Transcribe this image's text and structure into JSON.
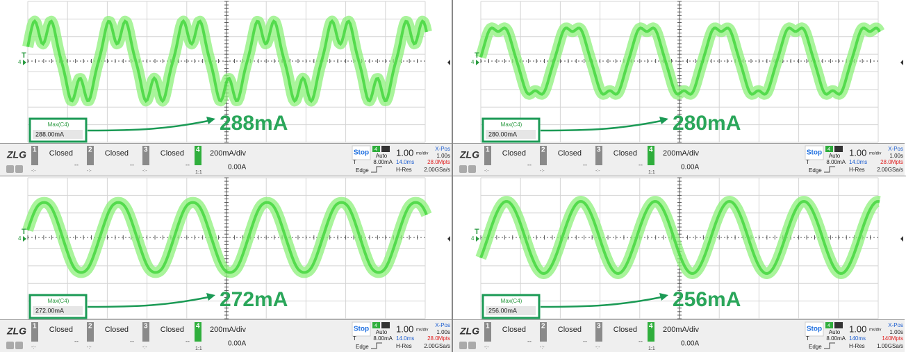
{
  "panels": [
    {
      "trigger_label": "T",
      "trigger_channel": "4",
      "max_label": "Max(C4)",
      "max_value": "288.00mA",
      "annotation": "288mA",
      "logo": "ZLG",
      "channels": [
        {
          "number": "1",
          "state": "Closed",
          "value": "--",
          "offset": "-:-"
        },
        {
          "number": "2",
          "state": "Closed",
          "value": "--",
          "offset": "-:-"
        },
        {
          "number": "3",
          "state": "Closed",
          "value": "--",
          "offset": "-:-"
        }
      ],
      "ch4": {
        "number": "4",
        "scale": "200mA/div",
        "offset": "0.00A",
        "probe": "1:1"
      },
      "run_state": "Stop",
      "trig_channel": "4",
      "trig_mode": "Auto",
      "timebase": "1.00",
      "timebase_unit": "ms/div",
      "xpos_label": "X-Pos",
      "xpos": "1.00s",
      "trig_type_label": "T",
      "trig_level": "8.00mA",
      "trig_kind": "Edge",
      "record_time": "14.0ms",
      "record_points": "28.0Mpts",
      "acq_mode": "H-Res",
      "sample_rate": "2.00GSa/s"
    },
    {
      "trigger_label": "T",
      "trigger_channel": "4",
      "max_label": "Max(C4)",
      "max_value": "280.00mA",
      "annotation": "280mA",
      "logo": "ZLG",
      "channels": [
        {
          "number": "1",
          "state": "Closed",
          "value": "--",
          "offset": "-:-"
        },
        {
          "number": "2",
          "state": "Closed",
          "value": "--",
          "offset": "-:-"
        },
        {
          "number": "3",
          "state": "Closed",
          "value": "--",
          "offset": "-:-"
        }
      ],
      "ch4": {
        "number": "4",
        "scale": "200mA/div",
        "offset": "0.00A",
        "probe": "1:1"
      },
      "run_state": "Stop",
      "trig_channel": "4",
      "trig_mode": "Auto",
      "timebase": "1.00",
      "timebase_unit": "ms/div",
      "xpos_label": "X-Pos",
      "xpos": "1.00s",
      "trig_type_label": "T",
      "trig_level": "8.00mA",
      "trig_kind": "Edge",
      "record_time": "14.0ms",
      "record_points": "28.0Mpts",
      "acq_mode": "H-Res",
      "sample_rate": "2.00GSa/s"
    },
    {
      "trigger_label": "T",
      "trigger_channel": "4",
      "max_label": "Max(C4)",
      "max_value": "272.00mA",
      "annotation": "272mA",
      "logo": "ZLG",
      "channels": [
        {
          "number": "1",
          "state": "Closed",
          "value": "--",
          "offset": "-:-"
        },
        {
          "number": "2",
          "state": "Closed",
          "value": "--",
          "offset": "-:-"
        },
        {
          "number": "3",
          "state": "Closed",
          "value": "--",
          "offset": "-:-"
        }
      ],
      "ch4": {
        "number": "4",
        "scale": "200mA/div",
        "offset": "0.00A",
        "probe": "1:1"
      },
      "run_state": "Stop",
      "trig_channel": "4",
      "trig_mode": "Auto",
      "timebase": "1.00",
      "timebase_unit": "ms/div",
      "xpos_label": "X-Pos",
      "xpos": "1.00s",
      "trig_type_label": "T",
      "trig_level": "8.00mA",
      "trig_kind": "Edge",
      "record_time": "14.0ms",
      "record_points": "28.0Mpts",
      "acq_mode": "H-Res",
      "sample_rate": "2.00GSa/s"
    },
    {
      "trigger_label": "T",
      "trigger_channel": "4",
      "max_label": "Max(C4)",
      "max_value": "256.00mA",
      "annotation": "256mA",
      "logo": "ZLG",
      "channels": [
        {
          "number": "1",
          "state": "Closed",
          "value": "--",
          "offset": "-:-"
        },
        {
          "number": "2",
          "state": "Closed",
          "value": "--",
          "offset": "-:-"
        },
        {
          "number": "3",
          "state": "Closed",
          "value": "--",
          "offset": "-:-"
        }
      ],
      "ch4": {
        "number": "4",
        "scale": "200mA/div",
        "offset": "0.00A",
        "probe": "1:1"
      },
      "run_state": "Stop",
      "trig_channel": "4",
      "trig_mode": "Auto",
      "timebase": "1.00",
      "timebase_unit": "ms/div",
      "xpos_label": "X-Pos",
      "xpos": "1.00s",
      "trig_type_label": "T",
      "trig_level": "8.00mA",
      "trig_kind": "Edge",
      "record_time": "140ms",
      "record_points": "140Mpts",
      "acq_mode": "H-Res",
      "sample_rate": "1.00GSa/s"
    }
  ]
}
